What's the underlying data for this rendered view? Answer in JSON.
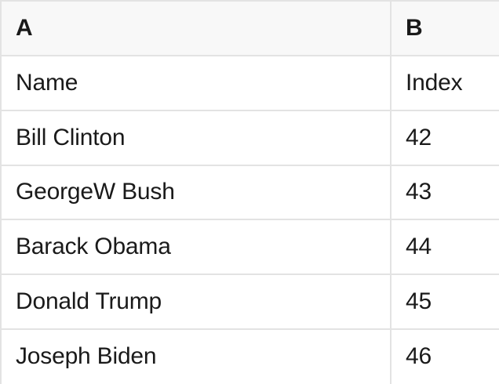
{
  "colors": {
    "header_bg": "#f8f8f8",
    "row_bg": "#ffffff",
    "border": "#e3e3e3",
    "text": "#1a1a1a"
  },
  "table": {
    "columns": [
      {
        "label": "A"
      },
      {
        "label": "B"
      }
    ],
    "rows": [
      [
        "Name",
        "Index"
      ],
      [
        "Bill Clinton",
        "42"
      ],
      [
        "GeorgeW Bush",
        "43"
      ],
      [
        "Barack Obama",
        "44"
      ],
      [
        "Donald Trump",
        "45"
      ],
      [
        "Joseph Biden",
        "46"
      ]
    ]
  }
}
